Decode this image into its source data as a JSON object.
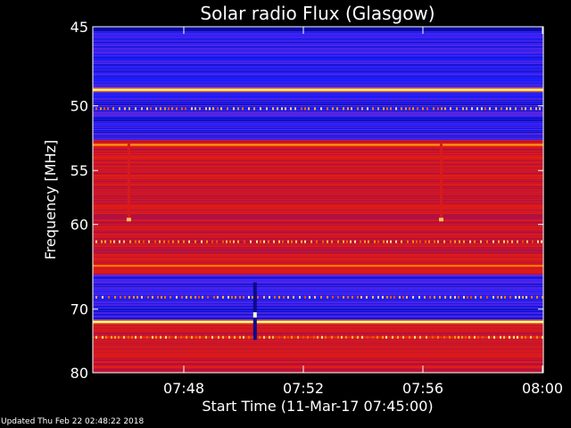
{
  "chart_data": {
    "type": "heatmap",
    "title": "Solar radio Flux (Glasgow)",
    "xlabel": "Start Time (11-Mar-17 07:45:00)",
    "ylabel": "Frequency [MHz]",
    "x_ticks": [
      "07:48",
      "07:52",
      "07:56",
      "08:00"
    ],
    "y_ticks": [
      "45",
      "50",
      "55",
      "60",
      "70",
      "80"
    ],
    "xlim_minutes_after_start": [
      0,
      15
    ],
    "ylim_mhz": [
      45,
      80
    ],
    "y_scale": "reciprocal",
    "colormap": [
      "#000078",
      "#1e1eff",
      "#6e28d2",
      "#b40f3c",
      "#e61e0f",
      "#ff9600",
      "#ffffc8"
    ],
    "bright_bands_mhz": [
      {
        "mhz": 48.9,
        "level": 1.0
      },
      {
        "mhz": 52.9,
        "level": 0.85
      },
      {
        "mhz": 64.5,
        "level": 0.8
      },
      {
        "mhz": 71.8,
        "level": 1.0
      },
      {
        "mhz": 74.1,
        "level": 0.7
      }
    ],
    "blue_region_mhz": [
      [
        45.2,
        52.5
      ],
      [
        65.5,
        71.5
      ]
    ],
    "vertical_features_minutes": [
      {
        "time": 1.2,
        "from_mhz": 52.7,
        "to_mhz": 59.6,
        "kind": "bright"
      },
      {
        "time": 11.6,
        "from_mhz": 52.7,
        "to_mhz": 59.6,
        "kind": "bright"
      },
      {
        "time": 5.4,
        "from_mhz": 66.5,
        "to_mhz": 74.5,
        "kind": "dark"
      }
    ]
  },
  "footer": "Updated Thu Feb 22 02:48:22 2018"
}
